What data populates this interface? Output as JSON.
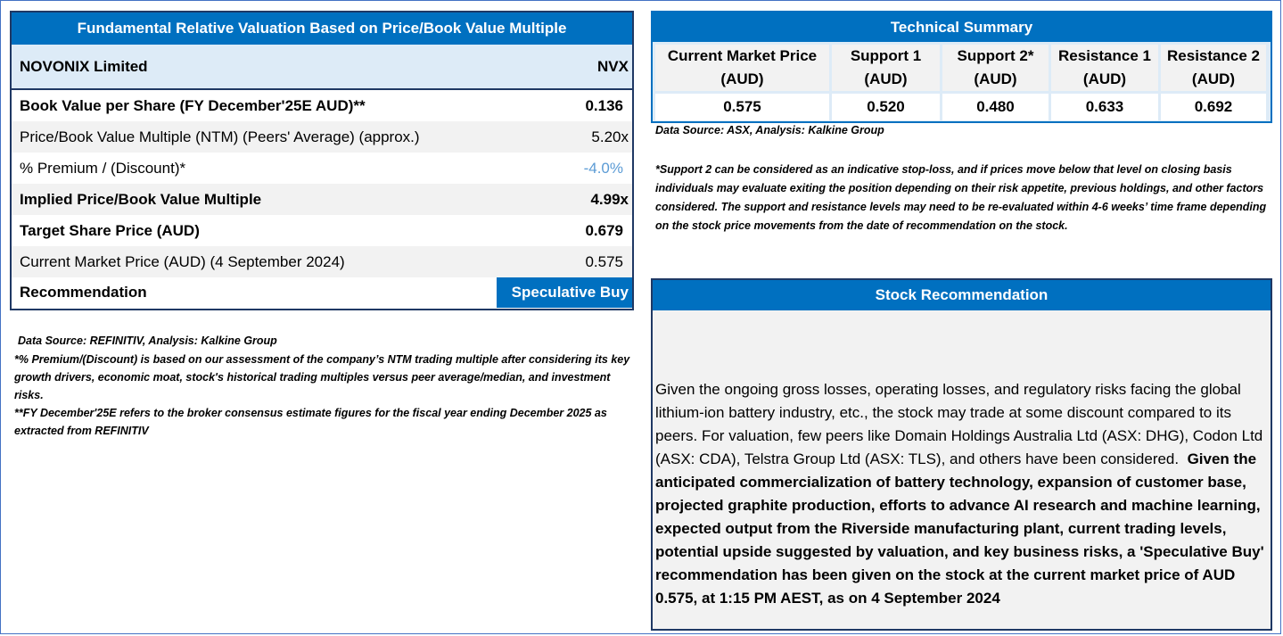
{
  "valuation": {
    "title": "Fundamental Relative Valuation Based on Price/Book Value Multiple",
    "company": "NOVONIX Limited",
    "ticker": "NVX",
    "rows": [
      {
        "label": "Book Value per Share (FY December'25E AUD)**",
        "value": "0.136"
      },
      {
        "label": "Price/Book Value Multiple (NTM)  (Peers' Average) (approx.)",
        "value": "5.20x"
      },
      {
        "label": "% Premium / (Discount)*",
        "value": "-4.0%"
      },
      {
        "label": "Implied Price/Book Value Multiple",
        "value": "4.99x"
      },
      {
        "label": "Target Share Price (AUD)",
        "value": "0.679"
      },
      {
        "label": "Current Market Price (AUD) (4 September 2024)",
        "value": "0.575"
      },
      {
        "label": "Recommendation",
        "value": "Speculative Buy"
      }
    ]
  },
  "notes": {
    "source": "Data Source: REFINITIV, Analysis: Kalkine Group",
    "premium_note": "*% Premium/(Discount) is based on our assessment of the company’s NTM trading multiple after considering its key growth drivers, economic moat, stock's historical trading multiples versus peer average/median, and investment risks.",
    "fy_note": "**FY December'25E refers to the broker consensus estimate figures for the fiscal year ending December 2025 as extracted from REFINITIV"
  },
  "technical": {
    "title": "Technical Summary",
    "columns": [
      {
        "header_line1": "Current Market Price",
        "header_line2": "(AUD)",
        "value": "0.575"
      },
      {
        "header_line1": "Support 1",
        "header_line2": "(AUD)",
        "value": "0.520"
      },
      {
        "header_line1": "Support 2*",
        "header_line2": "(AUD)",
        "value": "0.480"
      },
      {
        "header_line1": "Resistance 1",
        "header_line2": "(AUD)",
        "value": "0.633"
      },
      {
        "header_line1": "Resistance 2",
        "header_line2": "(AUD)",
        "value": "0.692"
      }
    ],
    "source": "Data Source: ASX, Analysis: Kalkine Group",
    "note": "*Support 2 can be considered as an indicative stop-loss, and if prices move below that level on closing basis individuals may evaluate exiting the position depending on their risk appetite, previous holdings, and other factors considered. The support and resistance levels may need to be re-evaluated within 4-6 weeks’ time frame depending on the stock price movements from the date of recommendation on the stock."
  },
  "stock_recommendation": {
    "title": "Stock Recommendation",
    "text_normal": "Given the ongoing gross losses, operating losses, and regulatory risks facing the global lithium-ion battery industry, etc., the stock may trade at some discount compared to its peers. For valuation, few peers like Domain Holdings Australia Ltd (ASX: DHG), Codon Ltd (ASX: CDA), Telstra Group Ltd (ASX: TLS), and others have been considered.",
    "text_bold": "Given the anticipated commercialization of battery technology, expansion of customer base, projected graphite production, efforts to advance AI research and machine learning, expected output from the Riverside manufacturing plant, current trading levels, potential upside suggested by valuation, and key business risks, a 'Speculative Buy' recommendation has been given on the stock at the current market price of AUD 0.575, at 1:15 PM AEST, as on 4 September 2024"
  },
  "colors": {
    "header_blue": "#0070c0",
    "light_blue": "#ddebf7",
    "grey_row": "#f2f2f2",
    "negative_value": "#5b9bd5"
  }
}
